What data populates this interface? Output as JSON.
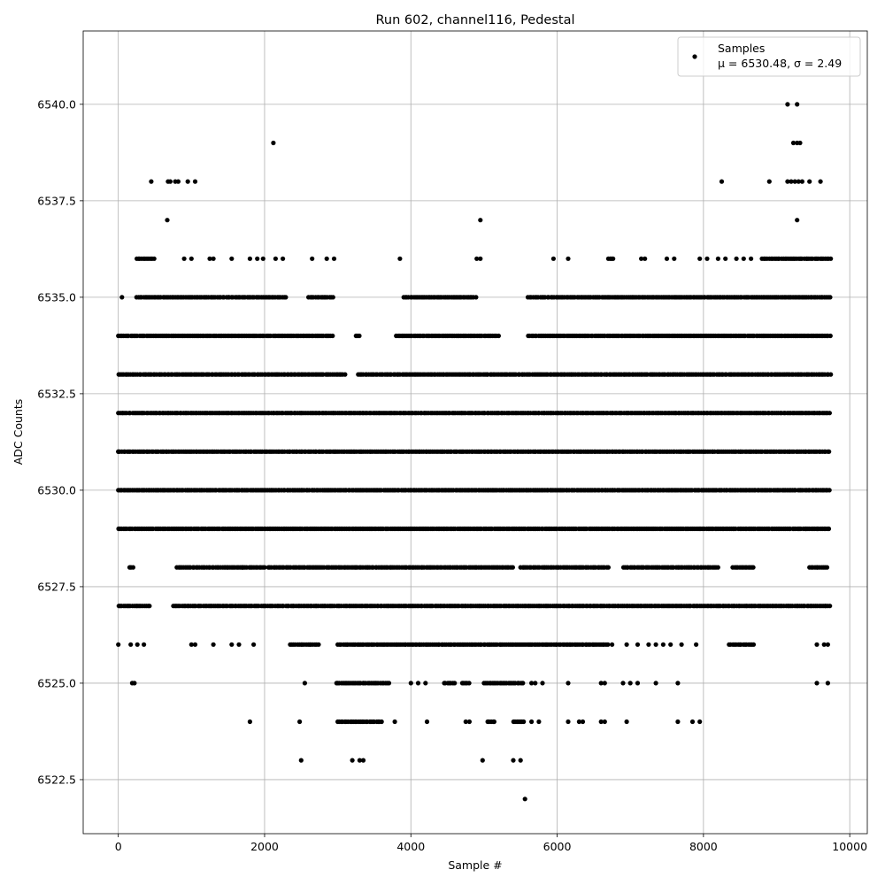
{
  "chart_data": {
    "type": "scatter",
    "title": "Run 602, channel116, Pedestal",
    "xlabel": "Sample #",
    "ylabel": "ADC Counts",
    "xlim": [
      -480,
      10240
    ],
    "ylim": [
      6521.1,
      6541.9
    ],
    "x_ticks": [
      0,
      2000,
      4000,
      6000,
      8000,
      10000
    ],
    "x_tick_labels": [
      "0",
      "2000",
      "4000",
      "6000",
      "8000",
      "10000"
    ],
    "y_ticks": [
      6522.5,
      6525.0,
      6527.5,
      6530.0,
      6532.5,
      6535.0,
      6537.5,
      6540.0
    ],
    "y_tick_labels": [
      "6522.5",
      "6525.0",
      "6527.5",
      "6530.0",
      "6532.5",
      "6535.0",
      "6537.5",
      "6540.0"
    ],
    "grid": true,
    "legend_position": "top-right",
    "marker_color": "#000000",
    "series": [
      {
        "name": "Samples",
        "stats_label": "μ = 6530.48, σ = 2.49",
        "level_segments": [
          {
            "y": 6531,
            "ranges": [
              [
                0,
                9740
              ]
            ]
          },
          {
            "y": 6530,
            "ranges": [
              [
                0,
                9740
              ]
            ]
          },
          {
            "y": 6529,
            "ranges": [
              [
                0,
                9740
              ]
            ]
          },
          {
            "y": 6532,
            "ranges": [
              [
                0,
                9740
              ]
            ]
          },
          {
            "y": 6533,
            "ranges": [
              [
                0,
                3100
              ],
              [
                3280,
                9740
              ]
            ]
          },
          {
            "y": 6527,
            "ranges": [
              [
                0,
                450
              ],
              [
                750,
                9740
              ]
            ]
          },
          {
            "y": 6534,
            "ranges": [
              [
                0,
                2950
              ],
              [
                3250,
                3300
              ],
              [
                3800,
                5200
              ],
              [
                5600,
                9740
              ]
            ]
          },
          {
            "y": 6535,
            "ranges": [
              [
                250,
                2300
              ],
              [
                2600,
                2950
              ],
              [
                3900,
                4900
              ],
              [
                5600,
                9740
              ]
            ]
          },
          {
            "y": 6528,
            "ranges": [
              [
                150,
                220
              ],
              [
                800,
                2000
              ],
              [
                2050,
                5400
              ],
              [
                5500,
                6700
              ],
              [
                6900,
                8200
              ],
              [
                8400,
                8700
              ],
              [
                9450,
                9700
              ]
            ]
          },
          {
            "y": 6536,
            "ranges": [
              [
                250,
                500
              ],
              [
                6700,
                6780
              ],
              [
                8800,
                9740
              ]
            ]
          },
          {
            "y": 6526,
            "ranges": [
              [
                2350,
                2750
              ],
              [
                3000,
                6700
              ],
              [
                8350,
                8700
              ]
            ]
          },
          {
            "y": 6525,
            "ranges": [
              [
                2980,
                3700
              ],
              [
                4450,
                4600
              ],
              [
                4700,
                4800
              ],
              [
                5000,
                5550
              ]
            ]
          },
          {
            "y": 6524,
            "ranges": [
              [
                3000,
                3600
              ],
              [
                5050,
                5150
              ],
              [
                5400,
                5550
              ]
            ]
          }
        ],
        "points": [
          [
            0,
            6531
          ],
          [
            0,
            6526
          ],
          [
            50,
            6535
          ],
          [
            170,
            6526
          ],
          [
            190,
            6525
          ],
          [
            220,
            6525
          ],
          [
            260,
            6526
          ],
          [
            350,
            6526
          ],
          [
            450,
            6538
          ],
          [
            680,
            6538
          ],
          [
            710,
            6538
          ],
          [
            780,
            6538
          ],
          [
            820,
            6538
          ],
          [
            950,
            6538
          ],
          [
            1050,
            6538
          ],
          [
            670,
            6537
          ],
          [
            1000,
            6526
          ],
          [
            1050,
            6526
          ],
          [
            1300,
            6526
          ],
          [
            1550,
            6526
          ],
          [
            1650,
            6526
          ],
          [
            1850,
            6526
          ],
          [
            1500,
            6528
          ],
          [
            1700,
            6528
          ],
          [
            900,
            6536
          ],
          [
            1000,
            6536
          ],
          [
            1250,
            6536
          ],
          [
            1300,
            6536
          ],
          [
            1550,
            6536
          ],
          [
            1800,
            6536
          ],
          [
            1900,
            6536
          ],
          [
            1980,
            6536
          ],
          [
            2150,
            6536
          ],
          [
            2250,
            6536
          ],
          [
            2650,
            6536
          ],
          [
            2850,
            6536
          ],
          [
            2950,
            6536
          ],
          [
            2120,
            6539
          ],
          [
            1800,
            6524
          ],
          [
            2480,
            6524
          ],
          [
            2500,
            6523
          ],
          [
            2550,
            6525
          ],
          [
            3200,
            6523
          ],
          [
            3300,
            6523
          ],
          [
            3350,
            6523
          ],
          [
            3780,
            6524
          ],
          [
            4220,
            6524
          ],
          [
            4750,
            6524
          ],
          [
            4800,
            6524
          ],
          [
            3850,
            6536
          ],
          [
            4900,
            6536
          ],
          [
            4950,
            6536
          ],
          [
            4950,
            6537
          ],
          [
            4980,
            6523
          ],
          [
            5400,
            6523
          ],
          [
            5500,
            6523
          ],
          [
            5560,
            6522
          ],
          [
            5650,
            6524
          ],
          [
            5750,
            6524
          ],
          [
            6150,
            6524
          ],
          [
            6300,
            6524
          ],
          [
            6350,
            6524
          ],
          [
            6600,
            6524
          ],
          [
            6650,
            6524
          ],
          [
            6950,
            6524
          ],
          [
            7650,
            6524
          ],
          [
            7850,
            6524
          ],
          [
            7950,
            6524
          ],
          [
            4000,
            6525
          ],
          [
            4100,
            6525
          ],
          [
            4200,
            6525
          ],
          [
            5650,
            6525
          ],
          [
            5700,
            6525
          ],
          [
            5800,
            6525
          ],
          [
            6150,
            6525
          ],
          [
            6600,
            6525
          ],
          [
            6650,
            6525
          ],
          [
            6900,
            6525
          ],
          [
            7000,
            6525
          ],
          [
            7100,
            6525
          ],
          [
            7350,
            6525
          ],
          [
            7650,
            6525
          ],
          [
            9550,
            6525
          ],
          [
            9700,
            6525
          ],
          [
            6750,
            6526
          ],
          [
            6950,
            6526
          ],
          [
            7100,
            6526
          ],
          [
            7250,
            6526
          ],
          [
            7350,
            6526
          ],
          [
            7450,
            6526
          ],
          [
            7550,
            6526
          ],
          [
            7700,
            6526
          ],
          [
            7900,
            6526
          ],
          [
            9550,
            6526
          ],
          [
            9650,
            6526
          ],
          [
            9700,
            6526
          ],
          [
            9300,
            6529
          ],
          [
            9400,
            6529
          ],
          [
            9550,
            6529
          ],
          [
            5950,
            6536
          ],
          [
            6150,
            6536
          ],
          [
            7150,
            6536
          ],
          [
            7200,
            6536
          ],
          [
            7500,
            6536
          ],
          [
            7600,
            6536
          ],
          [
            7950,
            6536
          ],
          [
            8050,
            6536
          ],
          [
            8200,
            6536
          ],
          [
            8300,
            6536
          ],
          [
            8450,
            6536
          ],
          [
            8550,
            6536
          ],
          [
            8650,
            6536
          ],
          [
            8250,
            6538
          ],
          [
            8900,
            6538
          ],
          [
            9150,
            6538
          ],
          [
            9200,
            6538
          ],
          [
            9250,
            6538
          ],
          [
            9300,
            6538
          ],
          [
            9350,
            6538
          ],
          [
            9450,
            6538
          ],
          [
            9600,
            6538
          ],
          [
            9280,
            6537
          ],
          [
            9230,
            6539
          ],
          [
            9280,
            6539
          ],
          [
            9320,
            6539
          ],
          [
            9150,
            6540
          ],
          [
            9280,
            6540
          ]
        ]
      }
    ]
  }
}
